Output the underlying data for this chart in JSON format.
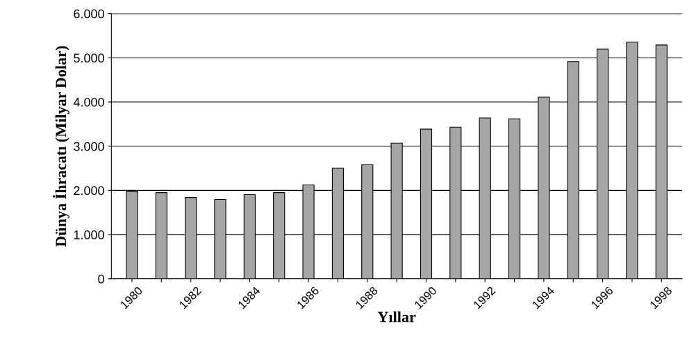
{
  "chart_data": {
    "type": "bar",
    "xlabel": "Yıllar",
    "ylabel": "Dünya İhracatı (Milyar Dolar)",
    "categories": [
      "1980",
      null,
      "1982",
      null,
      "1984",
      null,
      "1986",
      null,
      "1988",
      null,
      "1990",
      null,
      "1992",
      null,
      "1994",
      null,
      "1996",
      null,
      "1998"
    ],
    "values": [
      1980,
      1950,
      1840,
      1795,
      1905,
      1950,
      2125,
      2505,
      2580,
      3070,
      3385,
      3430,
      3640,
      3620,
      4110,
      4915,
      5195,
      5355,
      5290
    ],
    "color": "#a6a6a6",
    "ylim": [
      0,
      6000
    ],
    "yticks": [
      0,
      {
        "value": 1000,
        "label": "1.000"
      },
      {
        "value": 2000,
        "label": "2.000"
      },
      {
        "value": 3000,
        "label": "3.000"
      },
      {
        "value": 4000,
        "label": "4.000"
      },
      {
        "value": 5000,
        "label": "5.000"
      },
      {
        "value": 6000,
        "label": "6.000"
      }
    ],
    "grid": "y"
  }
}
